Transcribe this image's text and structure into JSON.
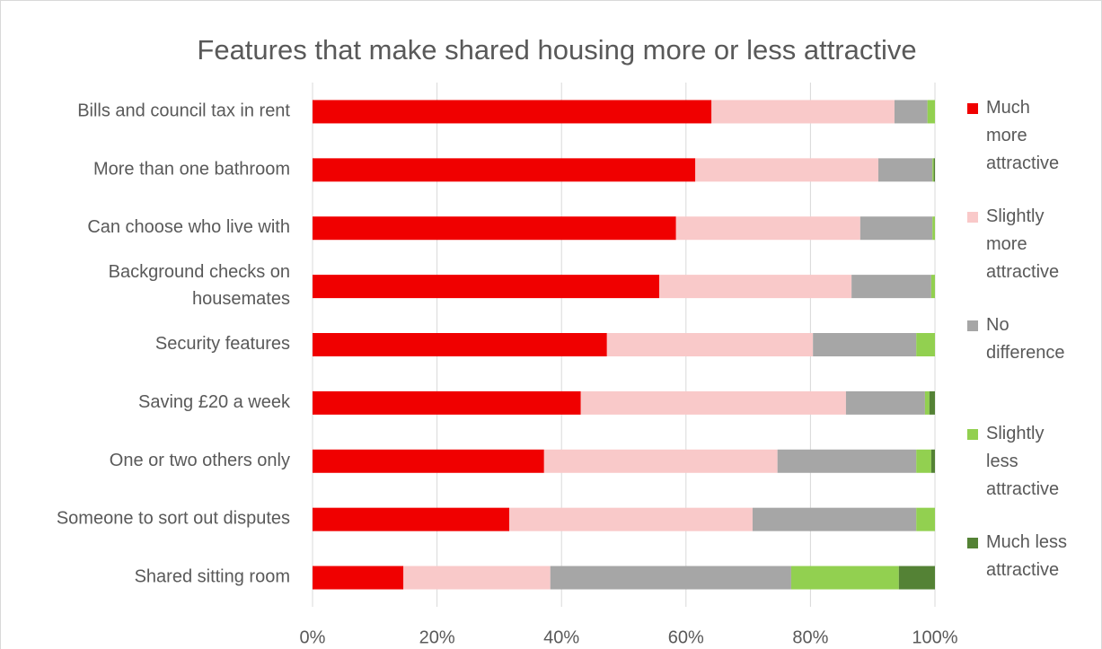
{
  "chart_data": {
    "type": "stacked_barh",
    "title": "Features that make shared housing more or less attractive",
    "categories": [
      "Bills and council tax in rent",
      "More than one bathroom",
      "Can choose who live with",
      "Background checks on housemates",
      "Security features",
      "Saving £20 a week",
      "One or two others only",
      "Someone to sort out disputes",
      "Shared sitting room"
    ],
    "series": [
      {
        "name": "Much more attractive",
        "color": "#f00000",
        "values": [
          64.1,
          61.5,
          58.4,
          55.7,
          47.3,
          43.1,
          37.2,
          31.6,
          14.6
        ]
      },
      {
        "name": "Slightly more attractive",
        "color": "#f9c9c9",
        "values": [
          29.4,
          29.4,
          29.6,
          30.9,
          33.1,
          42.6,
          37.5,
          39.1,
          23.6
        ]
      },
      {
        "name": "No difference",
        "color": "#a6a6a6",
        "values": [
          5.3,
          8.7,
          11.6,
          12.8,
          16.6,
          12.7,
          22.3,
          26.3,
          38.7
        ]
      },
      {
        "name": "Slightly less attractive",
        "color": "#92d050",
        "values": [
          1.2,
          0.2,
          0.4,
          0.6,
          3.0,
          0.7,
          2.4,
          3.0,
          17.3
        ]
      },
      {
        "name": "Much less attractive",
        "color": "#548235",
        "values": [
          0,
          0.2,
          0,
          0,
          0,
          0.9,
          0.6,
          0,
          5.8
        ]
      }
    ],
    "xlim": [
      0,
      100
    ],
    "xticks": [
      {
        "value": 0,
        "label": "0%"
      },
      {
        "value": 20,
        "label": "20%"
      },
      {
        "value": 40,
        "label": "40%"
      },
      {
        "value": 60,
        "label": "60%"
      },
      {
        "value": 80,
        "label": "80%"
      },
      {
        "value": 100,
        "label": "100%"
      }
    ],
    "grid": true,
    "legend": "right"
  }
}
